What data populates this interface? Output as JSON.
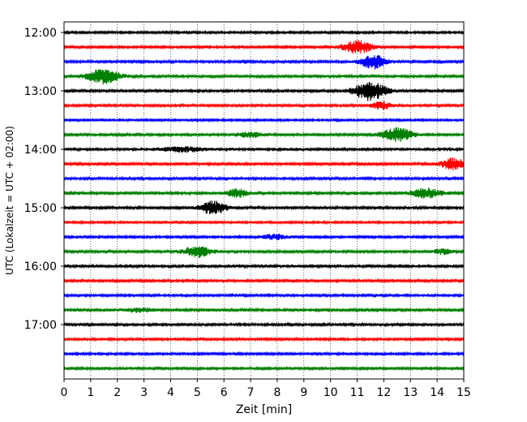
{
  "chart_data": {
    "type": "line",
    "xlabel": "Zeit  [min]",
    "ylabel": "UTC (Lokalzeit = UTC + 02:00)",
    "xlim": [
      0,
      15
    ],
    "x_ticks": [
      "0",
      "1",
      "2",
      "3",
      "4",
      "5",
      "6",
      "7",
      "8",
      "9",
      "10",
      "11",
      "12",
      "13",
      "14",
      "15"
    ],
    "y_ticks": [
      {
        "label": "12:00",
        "trace": 0
      },
      {
        "label": "13:00",
        "trace": 4
      },
      {
        "label": "14:00",
        "trace": 8
      },
      {
        "label": "15:00",
        "trace": 12
      },
      {
        "label": "16:00",
        "trace": 16
      },
      {
        "label": "17:00",
        "trace": 20
      }
    ],
    "trace_minutes": 15,
    "trace_colors": [
      "#000000",
      "#ff0000",
      "#0000ff",
      "#008000"
    ],
    "grid": {
      "vertical": true,
      "style": "dotted"
    },
    "traces": [
      {
        "start": "12:00",
        "noise": 1.2,
        "bursts": []
      },
      {
        "start": "12:15",
        "noise": 1.2,
        "bursts": [
          {
            "t": 11.0,
            "amp": 8,
            "width": 0.55
          }
        ]
      },
      {
        "start": "12:30",
        "noise": 1.3,
        "bursts": [
          {
            "t": 11.6,
            "amp": 9,
            "width": 0.45
          }
        ]
      },
      {
        "start": "12:45",
        "noise": 1.4,
        "bursts": [
          {
            "t": 1.5,
            "amp": 9,
            "width": 0.6
          }
        ]
      },
      {
        "start": "13:00",
        "noise": 1.3,
        "bursts": [
          {
            "t": 11.5,
            "amp": 12,
            "width": 0.6
          }
        ]
      },
      {
        "start": "13:15",
        "noise": 1.2,
        "bursts": [
          {
            "t": 11.9,
            "amp": 5,
            "width": 0.35
          }
        ]
      },
      {
        "start": "13:30",
        "noise": 1.1,
        "bursts": []
      },
      {
        "start": "13:45",
        "noise": 1.3,
        "bursts": [
          {
            "t": 12.5,
            "amp": 8,
            "width": 0.6
          },
          {
            "t": 7.0,
            "amp": 3,
            "width": 0.5
          }
        ]
      },
      {
        "start": "14:00",
        "noise": 1.6,
        "bursts": [
          {
            "t": 4.5,
            "amp": 2.5,
            "width": 0.8
          }
        ]
      },
      {
        "start": "14:15",
        "noise": 1.3,
        "bursts": [
          {
            "t": 14.6,
            "amp": 7,
            "width": 0.45
          }
        ]
      },
      {
        "start": "14:30",
        "noise": 1.4,
        "bursts": []
      },
      {
        "start": "14:45",
        "noise": 1.3,
        "bursts": [
          {
            "t": 6.5,
            "amp": 5,
            "width": 0.4
          },
          {
            "t": 13.6,
            "amp": 6,
            "width": 0.55
          }
        ]
      },
      {
        "start": "15:00",
        "noise": 1.4,
        "bursts": [
          {
            "t": 5.6,
            "amp": 8,
            "width": 0.5
          }
        ]
      },
      {
        "start": "15:15",
        "noise": 1.1,
        "bursts": []
      },
      {
        "start": "15:30",
        "noise": 1.2,
        "bursts": [
          {
            "t": 7.9,
            "amp": 3,
            "width": 0.5
          }
        ]
      },
      {
        "start": "15:45",
        "noise": 1.3,
        "bursts": [
          {
            "t": 5.0,
            "amp": 7,
            "width": 0.5
          },
          {
            "t": 14.2,
            "amp": 3,
            "width": 0.35
          }
        ]
      },
      {
        "start": "16:00",
        "noise": 1.5,
        "bursts": []
      },
      {
        "start": "16:15",
        "noise": 1.3,
        "bursts": []
      },
      {
        "start": "16:30",
        "noise": 1.2,
        "bursts": []
      },
      {
        "start": "16:45",
        "noise": 1.3,
        "bursts": [
          {
            "t": 2.8,
            "amp": 2.5,
            "width": 0.6
          }
        ]
      },
      {
        "start": "17:00",
        "noise": 1.4,
        "bursts": []
      },
      {
        "start": "17:15",
        "noise": 1.2,
        "bursts": []
      },
      {
        "start": "17:30",
        "noise": 1.2,
        "bursts": []
      },
      {
        "start": "17:45",
        "noise": 1.2,
        "bursts": []
      }
    ]
  }
}
